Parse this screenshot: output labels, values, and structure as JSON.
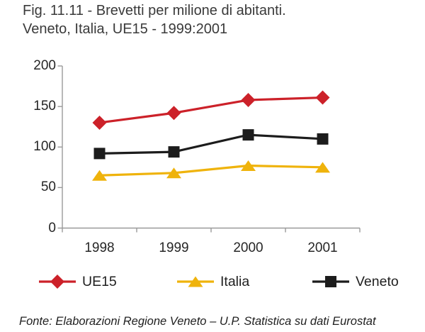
{
  "title": {
    "line1": "Fig. 11.11 - Brevetti per milione di abitanti.",
    "line2": "Veneto, Italia, UE15 - 1999:2001"
  },
  "chart_data": {
    "type": "line",
    "categories": [
      "1998",
      "1999",
      "2000",
      "2001"
    ],
    "series": [
      {
        "name": "UE15",
        "marker": "diamond",
        "color": "#cc2129",
        "values": [
          130,
          142,
          158,
          161
        ]
      },
      {
        "name": "Italia",
        "marker": "triangle",
        "color": "#efb30c",
        "values": [
          65,
          68,
          77,
          75
        ]
      },
      {
        "name": "Veneto",
        "marker": "square",
        "color": "#1c1c1c",
        "values": [
          92,
          94,
          115,
          110
        ]
      }
    ],
    "ylim": [
      0,
      200
    ],
    "yticks": [
      0,
      50,
      100,
      150,
      200
    ],
    "grid": false,
    "legend_position": "bottom",
    "axis_color": "#999999"
  },
  "footer": "Fonte: Elaborazioni Regione Veneto – U.P. Statistica su dati Eurostat"
}
